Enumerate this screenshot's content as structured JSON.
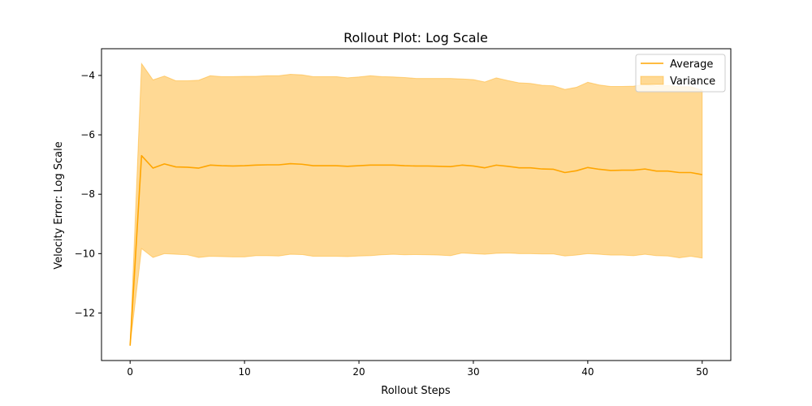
{
  "chart_data": {
    "type": "line",
    "title": "Rollout Plot: Log Scale",
    "xlabel": "Rollout Steps",
    "ylabel": "Velocity Error: Log Scale",
    "xlim": [
      -2.5,
      52.5
    ],
    "ylim": [
      -13.6,
      -3.1
    ],
    "xticks": [
      0,
      10,
      20,
      30,
      40,
      50
    ],
    "yticks": [
      -12,
      -10,
      -8,
      -6,
      -4
    ],
    "legend_position": "top-right",
    "colors": {
      "line": "#FFA500",
      "band_fill": "#FFA500"
    },
    "legend": [
      {
        "label": "Average",
        "kind": "line"
      },
      {
        "label": "Variance",
        "kind": "band"
      }
    ],
    "x": [
      0,
      1,
      2,
      3,
      4,
      5,
      6,
      7,
      8,
      9,
      10,
      11,
      12,
      13,
      14,
      15,
      16,
      17,
      18,
      19,
      20,
      21,
      22,
      23,
      24,
      25,
      26,
      27,
      28,
      29,
      30,
      31,
      32,
      33,
      34,
      35,
      36,
      37,
      38,
      39,
      40,
      41,
      42,
      43,
      44,
      45,
      46,
      47,
      48,
      49,
      50
    ],
    "series": [
      {
        "name": "Average",
        "values": [
          -13.1,
          -6.7,
          -7.12,
          -6.98,
          -7.08,
          -7.09,
          -7.12,
          -7.02,
          -7.04,
          -7.05,
          -7.04,
          -7.02,
          -7.01,
          -7.01,
          -6.97,
          -6.99,
          -7.04,
          -7.04,
          -7.04,
          -7.06,
          -7.04,
          -7.02,
          -7.02,
          -7.02,
          -7.04,
          -7.05,
          -7.05,
          -7.06,
          -7.07,
          -7.02,
          -7.05,
          -7.11,
          -7.02,
          -7.06,
          -7.11,
          -7.11,
          -7.15,
          -7.16,
          -7.27,
          -7.21,
          -7.1,
          -7.16,
          -7.2,
          -7.19,
          -7.19,
          -7.15,
          -7.22,
          -7.22,
          -7.27,
          -7.27,
          -7.34
        ]
      }
    ],
    "band": {
      "name": "Variance",
      "upper": [
        -13.1,
        -3.6,
        -4.15,
        -4.02,
        -4.18,
        -4.18,
        -4.16,
        -4.01,
        -4.04,
        -4.04,
        -4.03,
        -4.03,
        -4.01,
        -4.01,
        -3.96,
        -3.98,
        -4.04,
        -4.04,
        -4.04,
        -4.08,
        -4.05,
        -4.01,
        -4.04,
        -4.05,
        -4.07,
        -4.1,
        -4.1,
        -4.1,
        -4.1,
        -4.12,
        -4.14,
        -4.22,
        -4.08,
        -4.17,
        -4.25,
        -4.27,
        -4.33,
        -4.35,
        -4.47,
        -4.4,
        -4.23,
        -4.32,
        -4.37,
        -4.37,
        -4.36,
        -4.3,
        -4.36,
        -4.34,
        -4.38,
        -4.38,
        -4.5
      ],
      "lower": [
        -13.1,
        -9.83,
        -10.13,
        -10.0,
        -10.02,
        -10.04,
        -10.13,
        -10.09,
        -10.1,
        -10.11,
        -10.11,
        -10.07,
        -10.07,
        -10.08,
        -10.02,
        -10.03,
        -10.09,
        -10.09,
        -10.09,
        -10.1,
        -10.08,
        -10.07,
        -10.04,
        -10.02,
        -10.04,
        -10.03,
        -10.04,
        -10.05,
        -10.07,
        -9.98,
        -10.0,
        -10.02,
        -9.99,
        -9.98,
        -10.0,
        -10.0,
        -10.01,
        -10.01,
        -10.08,
        -10.05,
        -10.0,
        -10.02,
        -10.05,
        -10.05,
        -10.07,
        -10.02,
        -10.07,
        -10.08,
        -10.14,
        -10.09,
        -10.15
      ]
    }
  }
}
